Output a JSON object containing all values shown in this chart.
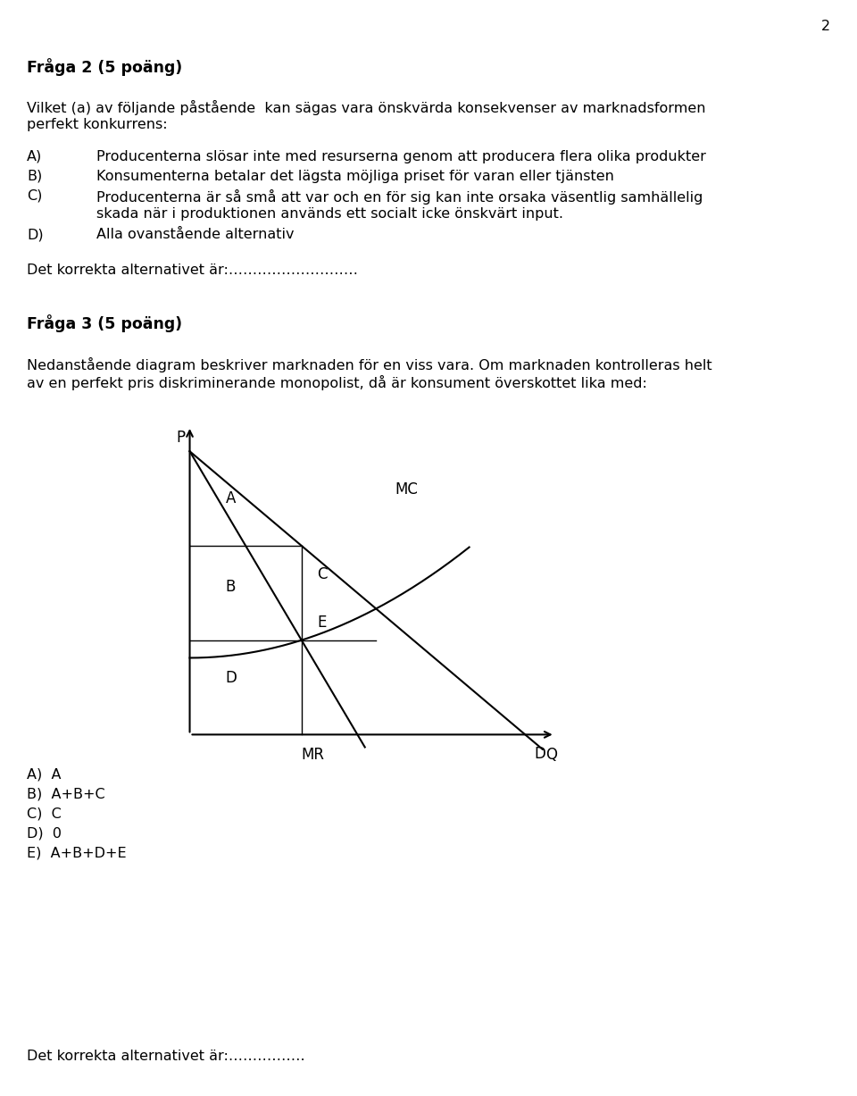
{
  "page_number": "2",
  "title2": "Fråga 2 (5 poäng)",
  "para2_line1": "Vilket (a) av följande påstående  kan sägas vara önskvärda konsekvenser av marknadsformen",
  "para2_line2": "perfekt konkurrens:",
  "A2": "Producenterna slösar inte med resurserna genom att producera flera olika produkter",
  "B2": "Konsumenterna betalar det lägsta möjliga priset för varan eller tjänsten",
  "C2_line1": "Producenterna är så små att var och en för sig kan inte orsaka väsentlig samhällelig",
  "C2_line2": "skada när i produktionen används ett socialt icke önskvärt input.",
  "D2": "Alla ovanstående alternativ",
  "answer2": "Det korrekta alternativet är:………………………",
  "title3": "Fråga 3 (5 poäng)",
  "para3_line1": "Nedanstående diagram beskriver marknaden för en viss vara. Om marknaden kontrolleras helt",
  "para3_line2": "av en perfekt pris diskriminerande monopolist, då är konsument överskottet lika med:",
  "opt3_A": "A)  A",
  "opt3_B": "B)  A+B+C",
  "opt3_C": "C)  C",
  "opt3_D": "D)  0",
  "opt3_E": "E)  A+B+D+E",
  "answer3": "Det korrekta alternativet är:…………….",
  "bg_color": "#ffffff",
  "text_color": "#000000"
}
